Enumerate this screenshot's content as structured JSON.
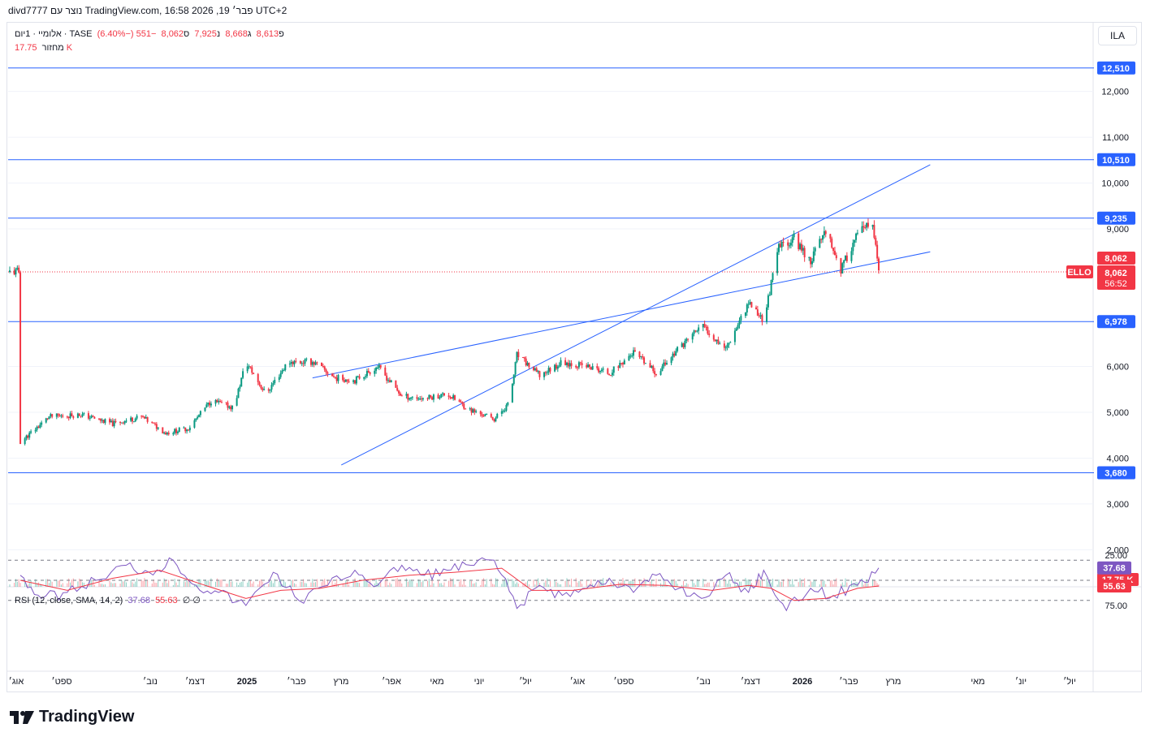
{
  "header": {
    "attribution": "divd7777 נוצר עם TradingView.com, 16:58 2026 ,פבר׳ 19 UTC+2"
  },
  "legend": {
    "symbol": "אלומיי · 1יום · TASE",
    "open_label": "פ",
    "open": "8,613",
    "high_label": "ג",
    "high": "8,668",
    "low_label": "נ",
    "low": "7,925",
    "close_label": "ס",
    "close": "8,062",
    "change": "−551 (−6.40%)",
    "volume_label": "מחזור",
    "volume": "17.75 K"
  },
  "rsi_legend": {
    "label": "RSI (12, close, SMA, 14, 2)",
    "rsi": "37.68",
    "ma": "55.63",
    "extra": "∅ ∅"
  },
  "currency": "ILA",
  "footer": {
    "brand": "TradingView"
  },
  "colors": {
    "up": "#089981",
    "down": "#f23645",
    "line": "#2962ff",
    "rsi": "#7e57c2",
    "rsi_ma": "#f23645"
  },
  "chart_data": [
    {
      "type": "candlestick",
      "title": "",
      "y_axis_ticks": [
        "12,000",
        "11,000",
        "10,000",
        "9,000",
        "6,000",
        "5,000",
        "4,000",
        "3,000",
        "2,000"
      ],
      "ylim": [
        1200,
        12900
      ],
      "horizontal_lines": [
        {
          "value": 12510,
          "label": "12,510"
        },
        {
          "value": 10510,
          "label": "10,510"
        },
        {
          "value": 9235,
          "label": "9,235"
        },
        {
          "value": 6978,
          "label": "6,978"
        },
        {
          "value": 3680,
          "label": "3,680"
        }
      ],
      "channel_lines": [
        {
          "from": {
            "date": "2025-03-01",
            "value": 3850
          },
          "to": {
            "date": "2026-03-25",
            "value": 10400
          }
        },
        {
          "from": {
            "date": "2025-02-10",
            "value": 5750
          },
          "to": {
            "date": "2026-03-25",
            "value": 8500
          }
        }
      ],
      "price_labels": [
        {
          "value": 8062,
          "label": "8,062"
        },
        {
          "value": 8062,
          "label": "8,062",
          "countdown": "56:52",
          "tag": "ELLO"
        }
      ],
      "volume_label": "17.75 K",
      "x_tick_labels": [
        "אוג׳",
        "ספט׳",
        "נוב׳",
        "דצמ׳",
        "2025",
        "פבר׳",
        "מרץ",
        "אפר׳",
        "מאי",
        "יוני",
        "יול׳",
        "אוג׳",
        "ספט׳",
        "נוב׳",
        "דצמ׳",
        "2026",
        "פבר׳",
        "מרץ",
        "מאי",
        "יונ׳",
        "יול׳"
      ],
      "series": [
        {
          "name": "אלומיי",
          "points": [
            {
              "date": "2024-08-01",
              "value": 4350
            },
            {
              "date": "2024-08-20",
              "value": 4900
            },
            {
              "date": "2024-09-10",
              "value": 4950
            },
            {
              "date": "2024-10-01",
              "value": 4750
            },
            {
              "date": "2024-10-20",
              "value": 4900
            },
            {
              "date": "2024-11-05",
              "value": 4550
            },
            {
              "date": "2024-11-20",
              "value": 4650
            },
            {
              "date": "2024-12-05",
              "value": 5250
            },
            {
              "date": "2024-12-20",
              "value": 5100
            },
            {
              "date": "2024-12-28",
              "value": 6100
            },
            {
              "date": "2025-01-10",
              "value": 5400
            },
            {
              "date": "2025-01-25",
              "value": 6100
            },
            {
              "date": "2025-02-10",
              "value": 6100
            },
            {
              "date": "2025-02-25",
              "value": 5750
            },
            {
              "date": "2025-03-10",
              "value": 5700
            },
            {
              "date": "2025-03-25",
              "value": 6000
            },
            {
              "date": "2025-04-10",
              "value": 5350
            },
            {
              "date": "2025-04-25",
              "value": 5300
            },
            {
              "date": "2025-05-10",
              "value": 5400
            },
            {
              "date": "2025-05-25",
              "value": 5050
            },
            {
              "date": "2025-06-10",
              "value": 4850
            },
            {
              "date": "2025-06-20",
              "value": 5200
            },
            {
              "date": "2025-06-25",
              "value": 6250
            },
            {
              "date": "2025-07-10",
              "value": 5800
            },
            {
              "date": "2025-07-25",
              "value": 6100
            },
            {
              "date": "2025-08-10",
              "value": 6000
            },
            {
              "date": "2025-08-25",
              "value": 5850
            },
            {
              "date": "2025-09-10",
              "value": 6300
            },
            {
              "date": "2025-09-25",
              "value": 5850
            },
            {
              "date": "2025-10-10",
              "value": 6400
            },
            {
              "date": "2025-10-25",
              "value": 6900
            },
            {
              "date": "2025-11-10",
              "value": 6400
            },
            {
              "date": "2025-11-25",
              "value": 7400
            },
            {
              "date": "2025-12-05",
              "value": 7000
            },
            {
              "date": "2025-12-15",
              "value": 8600
            },
            {
              "date": "2025-12-25",
              "value": 8800
            },
            {
              "date": "2026-01-05",
              "value": 8300
            },
            {
              "date": "2026-01-15",
              "value": 9000
            },
            {
              "date": "2026-01-25",
              "value": 8100
            },
            {
              "date": "2026-02-05",
              "value": 8900
            },
            {
              "date": "2026-02-15",
              "value": 9100
            },
            {
              "date": "2026-02-19",
              "value": 8062
            }
          ]
        }
      ]
    },
    {
      "type": "line",
      "title": "RSI (12, close, SMA, 14, 2)",
      "y_axis_ticks": [
        "75.00",
        "25.00"
      ],
      "ylim": [
        18,
        85
      ],
      "bands": [
        70,
        50,
        30
      ],
      "current_labels": [
        {
          "value": 55.63,
          "label": "55.63"
        },
        {
          "value": 37.68,
          "label": "37.68"
        }
      ],
      "series": [
        {
          "name": "RSI",
          "points": [
            {
              "date": "2024-08-01",
              "value": 45
            },
            {
              "date": "2024-08-15",
              "value": 68
            },
            {
              "date": "2024-09-01",
              "value": 62
            },
            {
              "date": "2024-09-20",
              "value": 50
            },
            {
              "date": "2024-10-10",
              "value": 35
            },
            {
              "date": "2024-10-25",
              "value": 42
            },
            {
              "date": "2024-11-10",
              "value": 30
            },
            {
              "date": "2024-11-25",
              "value": 55
            },
            {
              "date": "2024-12-10",
              "value": 62
            },
            {
              "date": "2024-12-28",
              "value": 75
            },
            {
              "date": "2025-01-15",
              "value": 42
            },
            {
              "date": "2025-02-01",
              "value": 70
            },
            {
              "date": "2025-02-20",
              "value": 55
            },
            {
              "date": "2025-03-10",
              "value": 40
            },
            {
              "date": "2025-03-25",
              "value": 55
            },
            {
              "date": "2025-04-10",
              "value": 35
            },
            {
              "date": "2025-04-25",
              "value": 45
            },
            {
              "date": "2025-05-10",
              "value": 40
            },
            {
              "date": "2025-05-25",
              "value": 35
            },
            {
              "date": "2025-06-10",
              "value": 30
            },
            {
              "date": "2025-06-25",
              "value": 78
            },
            {
              "date": "2025-07-10",
              "value": 55
            },
            {
              "date": "2025-07-25",
              "value": 65
            },
            {
              "date": "2025-08-10",
              "value": 58
            },
            {
              "date": "2025-08-25",
              "value": 48
            },
            {
              "date": "2025-09-10",
              "value": 62
            },
            {
              "date": "2025-09-25",
              "value": 45
            },
            {
              "date": "2025-10-10",
              "value": 58
            },
            {
              "date": "2025-10-25",
              "value": 68
            },
            {
              "date": "2025-11-10",
              "value": 45
            },
            {
              "date": "2025-11-25",
              "value": 62
            },
            {
              "date": "2025-12-05",
              "value": 40
            },
            {
              "date": "2025-12-20",
              "value": 80
            },
            {
              "date": "2026-01-05",
              "value": 58
            },
            {
              "date": "2026-01-20",
              "value": 65
            },
            {
              "date": "2026-02-05",
              "value": 55
            },
            {
              "date": "2026-02-19",
              "value": 37.68
            }
          ]
        },
        {
          "name": "SMA",
          "points": [
            {
              "date": "2024-08-01",
              "value": 50
            },
            {
              "date": "2024-09-01",
              "value": 60
            },
            {
              "date": "2024-10-01",
              "value": 48
            },
            {
              "date": "2024-11-01",
              "value": 40
            },
            {
              "date": "2024-12-01",
              "value": 55
            },
            {
              "date": "2024-12-28",
              "value": 68
            },
            {
              "date": "2025-01-20",
              "value": 60
            },
            {
              "date": "2025-02-15",
              "value": 58
            },
            {
              "date": "2025-03-15",
              "value": 50
            },
            {
              "date": "2025-04-15",
              "value": 45
            },
            {
              "date": "2025-05-15",
              "value": 42
            },
            {
              "date": "2025-06-15",
              "value": 38
            },
            {
              "date": "2025-07-05",
              "value": 60
            },
            {
              "date": "2025-08-01",
              "value": 60
            },
            {
              "date": "2025-09-01",
              "value": 54
            },
            {
              "date": "2025-10-01",
              "value": 55
            },
            {
              "date": "2025-11-01",
              "value": 60
            },
            {
              "date": "2025-11-25",
              "value": 55
            },
            {
              "date": "2025-12-10",
              "value": 58
            },
            {
              "date": "2025-12-25",
              "value": 70
            },
            {
              "date": "2026-01-15",
              "value": 68
            },
            {
              "date": "2026-02-05",
              "value": 58
            },
            {
              "date": "2026-02-19",
              "value": 55.63
            }
          ]
        }
      ]
    }
  ]
}
